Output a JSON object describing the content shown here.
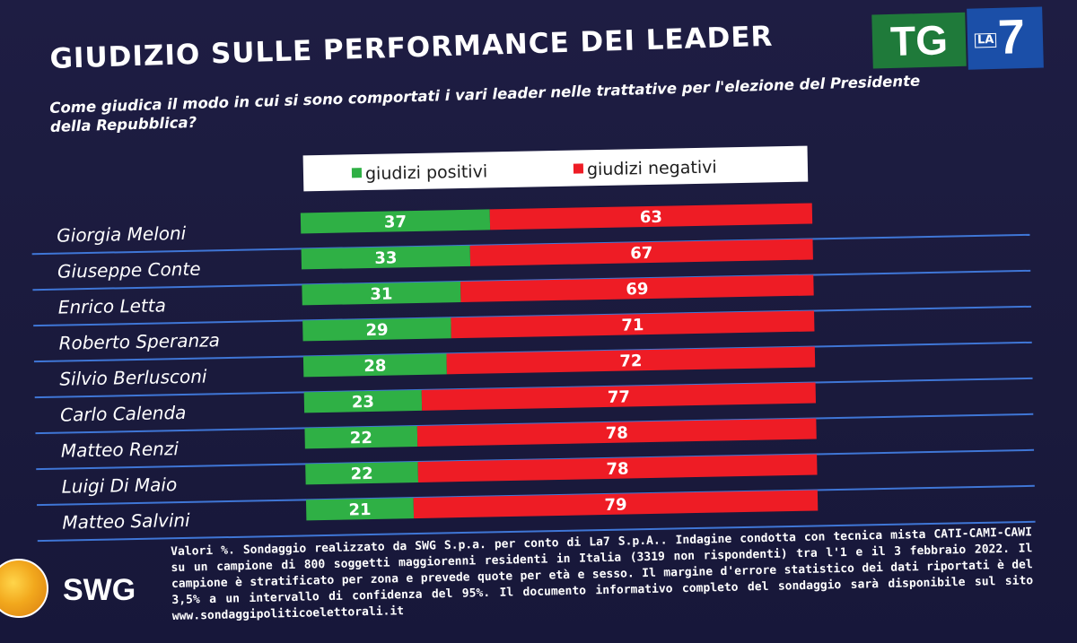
{
  "title": "GIUDIZIO SULLE PERFORMANCE DEI LEADER",
  "subtitle": "Come giudica il modo in cui si sono comportati i vari leader nelle trattative per l'elezione del Presidente della Repubblica?",
  "logo": {
    "tg": "TG",
    "la": "LA",
    "seven": "7"
  },
  "swg_logo": "SWG",
  "footnote": "Valori %. Sondaggio realizzato da SWG S.p.a. per conto di La7 S.p.A.. Indagine condotta con tecnica mista CATI-CAMI-CAWI su un campione di 800 soggetti maggiorenni residenti in Italia (3319 non rispondenti) tra l'1 e il 3 febbraio 2022. Il campione è stratificato per zona e prevede quote per età e sesso. Il margine d'errore statistico dei dati riportati è del 3,5% a un intervallo di confidenza del 95%. Il documento informativo completo del sondaggio sarà disponibile sul sito www.sondaggipoliticoelettorali.it",
  "colors": {
    "positive": "#2fb045",
    "negative": "#ee1c25",
    "background": "#1b1a3d",
    "line": "#3f76d6"
  },
  "chart_data": {
    "type": "bar",
    "orientation": "horizontal",
    "stacked": true,
    "categories": [
      "Giorgia Meloni",
      "Giuseppe Conte",
      "Enrico Letta",
      "Roberto Speranza",
      "Silvio Berlusconi",
      "Carlo Calenda",
      "Matteo Renzi",
      "Luigi Di Maio",
      "Matteo Salvini"
    ],
    "series": [
      {
        "name": "giudizi positivi",
        "color": "#2fb045",
        "values": [
          37,
          33,
          31,
          29,
          28,
          23,
          22,
          22,
          21
        ]
      },
      {
        "name": "giudizi negativi",
        "color": "#ee1c25",
        "values": [
          63,
          67,
          69,
          71,
          72,
          77,
          78,
          78,
          79
        ]
      }
    ],
    "xlim": [
      0,
      100
    ],
    "legend": "top"
  }
}
